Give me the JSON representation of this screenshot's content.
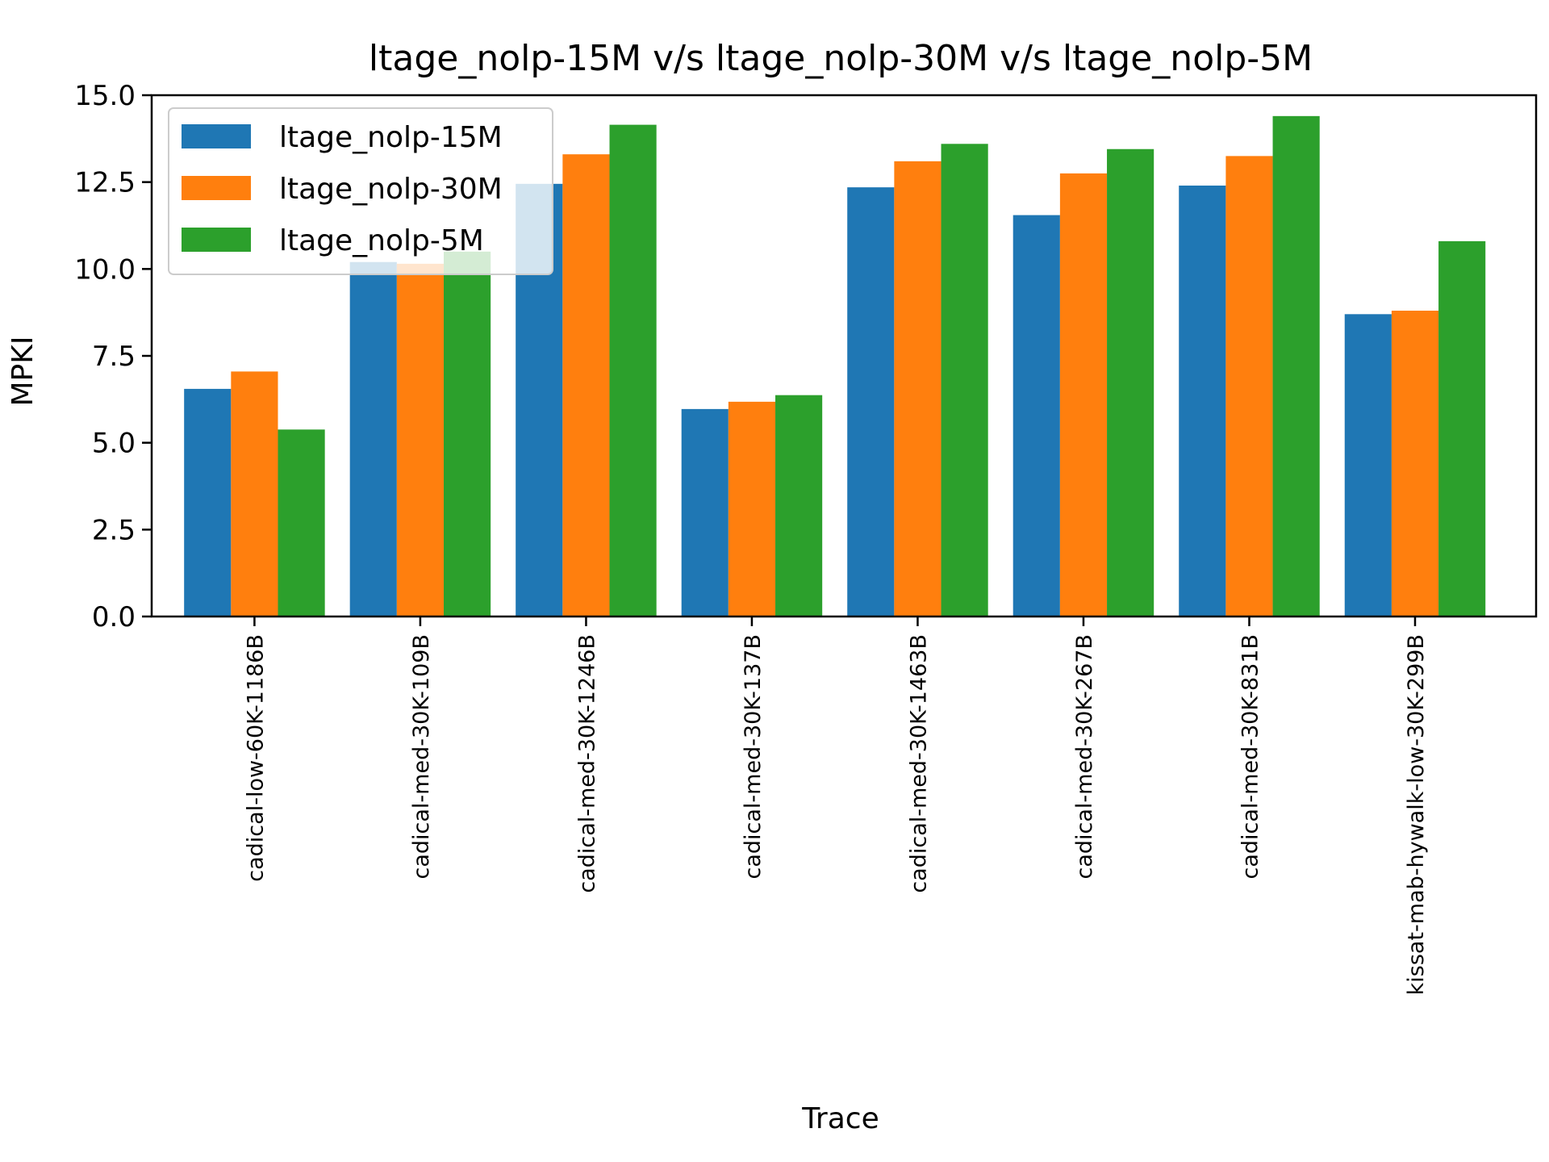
{
  "chart_data": {
    "type": "bar",
    "title": "ltage_nolp-15M v/s ltage_nolp-30M v/s ltage_nolp-5M",
    "xlabel": "Trace",
    "ylabel": "MPKI",
    "ylim": [
      0,
      15
    ],
    "yticks": [
      "0.0",
      "2.5",
      "5.0",
      "7.5",
      "10.0",
      "12.5",
      "15.0"
    ],
    "grid": false,
    "legend_position": "upper-left",
    "categories": [
      "cadical-low-60K-1186B",
      "cadical-med-30K-109B",
      "cadical-med-30K-1246B",
      "cadical-med-30K-137B",
      "cadical-med-30K-1463B",
      "cadical-med-30K-267B",
      "cadical-med-30K-831B",
      "kissat-mab-hywalk-low-30K-299B"
    ],
    "series": [
      {
        "name": "ltage_nolp-15M",
        "color": "#1f77b4",
        "values": [
          6.55,
          10.2,
          12.45,
          5.97,
          12.35,
          11.55,
          12.4,
          8.7
        ]
      },
      {
        "name": "ltage_nolp-30M",
        "color": "#ff7f0e",
        "values": [
          7.05,
          10.15,
          13.3,
          6.18,
          13.1,
          12.75,
          13.25,
          8.8
        ]
      },
      {
        "name": "ltage_nolp-5M",
        "color": "#2ca02c",
        "values": [
          5.38,
          10.5,
          14.15,
          6.37,
          13.6,
          13.45,
          14.4,
          10.8
        ]
      }
    ]
  }
}
